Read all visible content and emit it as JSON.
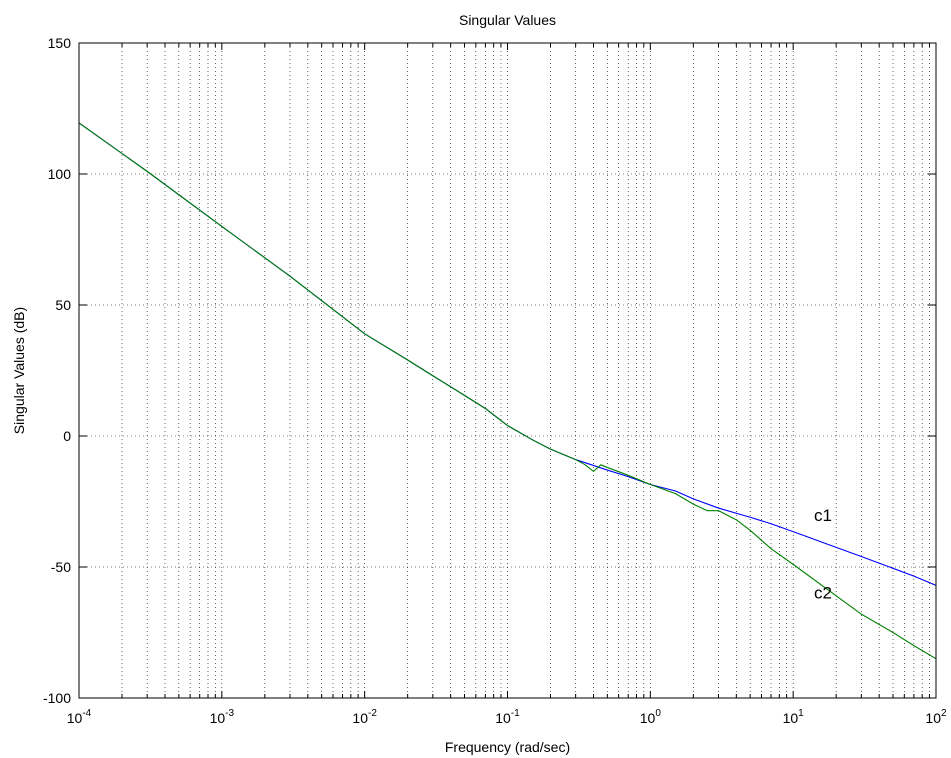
{
  "chart_data": {
    "type": "line",
    "title": "Singular Values",
    "xlabel": "Frequency (rad/sec)",
    "ylabel": "Singular Values (dB)",
    "x_scale": "log",
    "xlim": [
      0.0001,
      100
    ],
    "ylim": [
      -100,
      150
    ],
    "x_ticks": [
      {
        "value": 0.0001,
        "base": "10",
        "exp": "-4"
      },
      {
        "value": 0.001,
        "base": "10",
        "exp": "-3"
      },
      {
        "value": 0.01,
        "base": "10",
        "exp": "-2"
      },
      {
        "value": 0.1,
        "base": "10",
        "exp": "-1"
      },
      {
        "value": 1,
        "base": "10",
        "exp": "0"
      },
      {
        "value": 10,
        "base": "10",
        "exp": "1"
      },
      {
        "value": 100,
        "base": "10",
        "exp": "2"
      }
    ],
    "y_ticks": [
      150,
      100,
      50,
      0,
      -50,
      -100
    ],
    "grid": true,
    "grid_style": "dotted",
    "series": [
      {
        "name": "c1",
        "color": "#0000ff",
        "x": [
          0.0001,
          0.0003,
          0.001,
          0.003,
          0.01,
          0.02,
          0.03,
          0.05,
          0.07,
          0.1,
          0.15,
          0.2,
          0.3,
          0.5,
          0.7,
          1,
          1.5,
          2,
          3,
          5,
          7,
          10,
          20,
          30,
          50,
          70,
          100
        ],
        "y": [
          119.5,
          101,
          80,
          61,
          39,
          29,
          23,
          15.5,
          10.5,
          4,
          -1.5,
          -5,
          -9,
          -13,
          -15.5,
          -18.5,
          -21,
          -24,
          -27.5,
          -31,
          -33.5,
          -36.5,
          -42.5,
          -46,
          -50.5,
          -53.5,
          -57
        ]
      },
      {
        "name": "c2",
        "color": "#008000",
        "x": [
          0.0001,
          0.0003,
          0.001,
          0.003,
          0.01,
          0.02,
          0.03,
          0.05,
          0.07,
          0.1,
          0.15,
          0.2,
          0.3,
          0.35,
          0.4,
          0.45,
          0.5,
          0.7,
          1,
          1.5,
          2,
          2.5,
          3,
          4,
          5,
          7,
          10,
          20,
          30,
          50,
          70,
          100
        ],
        "y": [
          119.5,
          101,
          80,
          61,
          39,
          29,
          23,
          15.5,
          10.5,
          4,
          -1.5,
          -5,
          -9,
          -11,
          -13.5,
          -11,
          -12,
          -15,
          -18.5,
          -22,
          -26,
          -28.5,
          -28.5,
          -32,
          -36,
          -43,
          -49,
          -61,
          -68,
          -75,
          -80,
          -85
        ]
      }
    ],
    "annotations": [
      {
        "text": "c1",
        "x": 14,
        "y": -32.5
      },
      {
        "text": "c2",
        "x": 14,
        "y": -62
      }
    ]
  }
}
